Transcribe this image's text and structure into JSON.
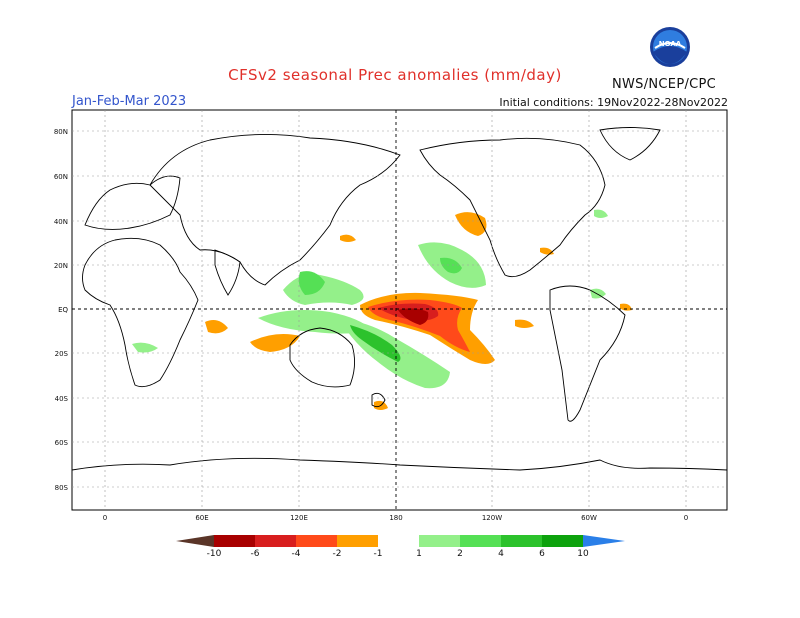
{
  "title": "CFSv2 seasonal Prec anomalies (mm/day)",
  "season": "Jan-Feb-Mar 2023",
  "initial_conditions": "Initial conditions: 19Nov2022-28Nov2022",
  "agency": "NWS/NCEP/CPC",
  "logo_text": "NOAA",
  "lat_labels": [
    "80N",
    "60N",
    "40N",
    "20N",
    "EQ",
    "20S",
    "40S",
    "60S",
    "80S"
  ],
  "lon_labels": [
    "0",
    "60E",
    "120E",
    "180",
    "120W",
    "60W",
    "0"
  ],
  "legend": {
    "labels": [
      "-10",
      "-6",
      "-4",
      "-2",
      "-1",
      "1",
      "2",
      "4",
      "6",
      "10"
    ],
    "colors": [
      "#5a3528",
      "#a80000",
      "#d81e1e",
      "#ff4a1a",
      "#ff9f00",
      "#ffffff",
      "#94f08a",
      "#55e055",
      "#2cc22c",
      "#0da20d",
      "#2a7fe8"
    ]
  },
  "colors": {
    "dry_light": "#ff9f00",
    "dry_mid": "#ff4a1a",
    "dry_strong": "#d81e1e",
    "dry_extreme": "#a80000",
    "wet_light": "#94f08a",
    "wet_mid": "#55e055",
    "wet_strong": "#2cc22c",
    "wet_extreme": "#0da20d"
  }
}
